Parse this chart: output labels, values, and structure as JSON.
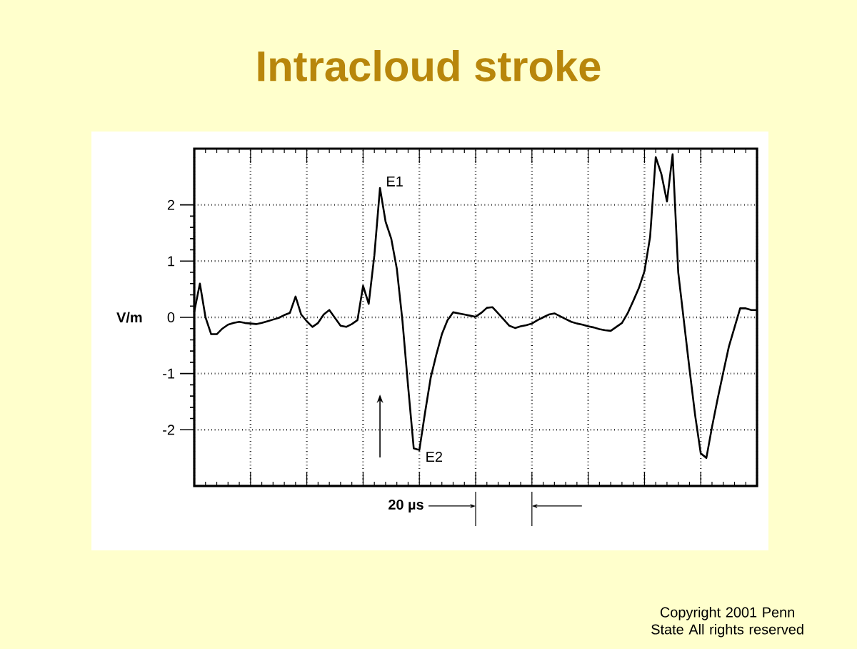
{
  "chart_data": {
    "type": "line",
    "title": "Intracloud stroke",
    "ylabel": "V/m",
    "categories": [
      null,
      null,
      null,
      null,
      null,
      null,
      null,
      null,
      null,
      null,
      null,
      null,
      null,
      null,
      null,
      null,
      null,
      null,
      null,
      null,
      null,
      null,
      null,
      null,
      null,
      null,
      null,
      null,
      null,
      null,
      null,
      null,
      null,
      null,
      null,
      null,
      null,
      null,
      null,
      null,
      null,
      null,
      null,
      null,
      null,
      null,
      null,
      null,
      null,
      null,
      null,
      null,
      null,
      null,
      null,
      null,
      null,
      null,
      null,
      null,
      null,
      null,
      null,
      null,
      null,
      null,
      null,
      null,
      null,
      null,
      null,
      null,
      null,
      null,
      null,
      null,
      null,
      null,
      null,
      null,
      null,
      null,
      null,
      null,
      null,
      null,
      null,
      null,
      null,
      null,
      null,
      null,
      null,
      null,
      null,
      null,
      null,
      null,
      null,
      null,
      null
    ],
    "values": [
      0.1,
      0.6,
      0.0,
      -0.3,
      -0.3,
      -0.2,
      -0.13,
      -0.1,
      -0.08,
      -0.1,
      -0.11,
      -0.12,
      -0.1,
      -0.07,
      -0.04,
      -0.01,
      0.04,
      0.08,
      0.37,
      0.05,
      -0.07,
      -0.17,
      -0.1,
      0.05,
      0.13,
      -0.01,
      -0.15,
      -0.17,
      -0.12,
      -0.05,
      0.56,
      0.24,
      1.1,
      2.3,
      1.7,
      1.4,
      0.86,
      -0.07,
      -1.23,
      -2.33,
      -2.36,
      -1.7,
      -1.08,
      -0.67,
      -0.3,
      -0.05,
      0.09,
      0.07,
      0.05,
      0.03,
      0.01,
      0.08,
      0.17,
      0.18,
      0.07,
      -0.04,
      -0.15,
      -0.19,
      -0.16,
      -0.14,
      -0.11,
      -0.05,
      0.0,
      0.05,
      0.07,
      0.02,
      -0.03,
      -0.08,
      -0.11,
      -0.13,
      -0.16,
      -0.18,
      -0.21,
      -0.23,
      -0.24,
      -0.17,
      -0.1,
      0.07,
      0.29,
      0.52,
      0.82,
      1.43,
      2.85,
      2.55,
      2.06,
      2.9,
      0.8,
      -0.06,
      -0.92,
      -1.74,
      -2.42,
      -2.5,
      -1.95,
      -1.45,
      -0.98,
      -0.52,
      -0.18,
      0.16,
      0.16,
      0.13,
      0.13
    ],
    "color": "#000000",
    "ylim": [
      -3,
      3
    ],
    "yticks": [
      -2,
      -1,
      0,
      1,
      2
    ],
    "grid": true,
    "marker": "none",
    "line_style": "solid",
    "tick_labels": "y",
    "annotations": [
      "E1",
      "E2",
      "20 µs",
      "Copyright 2001 Penn State All rights reserved"
    ]
  }
}
